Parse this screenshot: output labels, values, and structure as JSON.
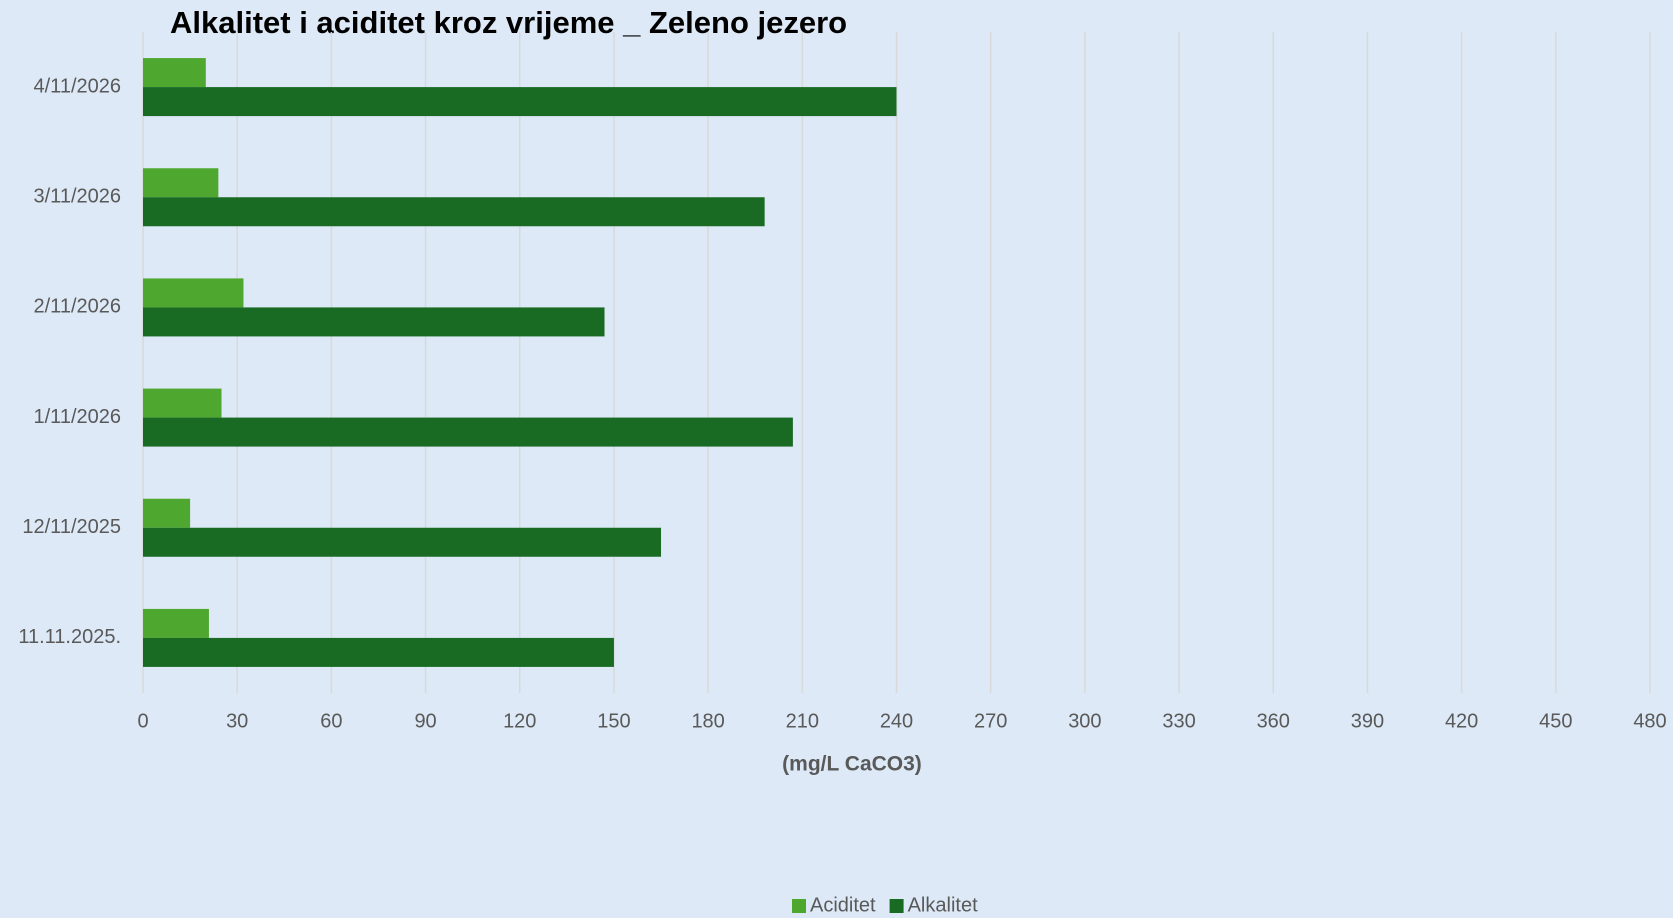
{
  "chart_data": {
    "type": "bar",
    "orientation": "horizontal",
    "title": "Alkalitet i aciditet kroz vrijeme _ Zeleno jezero",
    "xlabel": "(mg/L CaCO3)",
    "categories": [
      "11.11.2025.",
      "12/11/2025",
      "1/11/2026",
      "2/11/2026",
      "3/11/2026",
      "4/11/2026"
    ],
    "series": [
      {
        "name": "Aciditet",
        "color": "#4ea72e",
        "values": [
          21,
          15,
          25,
          32,
          24,
          20
        ]
      },
      {
        "name": "Alkalitet",
        "color": "#196b24",
        "values": [
          150,
          165,
          207,
          147,
          198,
          240
        ]
      }
    ],
    "xlim": [
      0,
      480
    ],
    "xticks": [
      0,
      30,
      60,
      90,
      120,
      150,
      180,
      210,
      240,
      270,
      300,
      330,
      360,
      390,
      420,
      450,
      480
    ],
    "grid": true,
    "legend": "bottom"
  }
}
